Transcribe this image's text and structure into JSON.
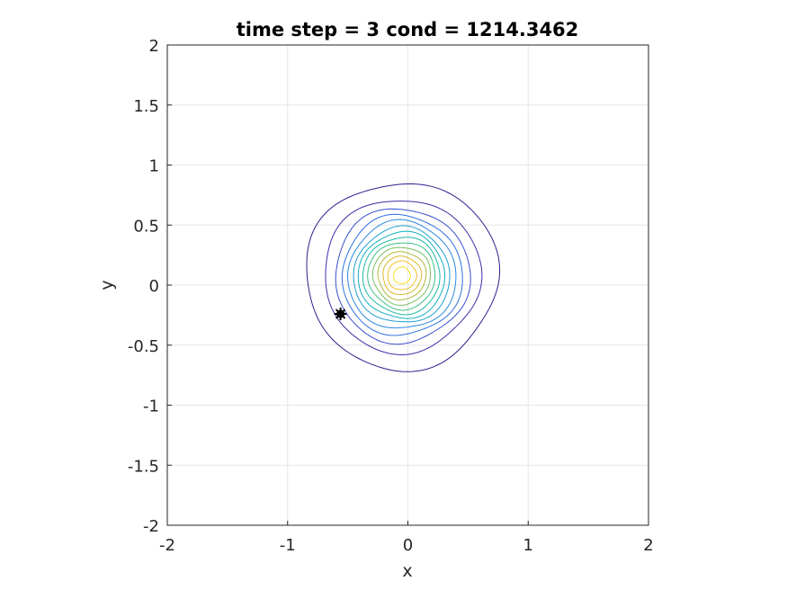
{
  "chart_data": {
    "type": "contour",
    "title": "time step = 3 cond = 1214.3462",
    "xlabel": "x",
    "ylabel": "y",
    "xlim": [
      -2,
      2
    ],
    "ylim": [
      -2,
      2
    ],
    "x_ticks": [
      "-2",
      "-1",
      "0",
      "1",
      "2"
    ],
    "y_ticks": [
      "2",
      "1.5",
      "1",
      "0.5",
      "0",
      "-0.5",
      "-1",
      "-1.5",
      "-2"
    ],
    "grid": true,
    "contour_center": [
      -0.05,
      0.08
    ],
    "contour_levels": [
      {
        "rx": 0.8,
        "ry": 0.78,
        "color": "#2f1f8f"
      },
      {
        "rx": 0.65,
        "ry": 0.64,
        "color": "#3a2fa8"
      },
      {
        "rx": 0.56,
        "ry": 0.56,
        "color": "#3a4fd0"
      },
      {
        "rx": 0.5,
        "ry": 0.5,
        "color": "#2f6fe0"
      },
      {
        "rx": 0.45,
        "ry": 0.45,
        "color": "#2a88dd"
      },
      {
        "rx": 0.4,
        "ry": 0.4,
        "color": "#1f9fd2"
      },
      {
        "rx": 0.36,
        "ry": 0.36,
        "color": "#14b0c0"
      },
      {
        "rx": 0.32,
        "ry": 0.32,
        "color": "#1ab9a5"
      },
      {
        "rx": 0.28,
        "ry": 0.28,
        "color": "#3dbf85"
      },
      {
        "rx": 0.24,
        "ry": 0.24,
        "color": "#78c060"
      },
      {
        "rx": 0.2,
        "ry": 0.2,
        "color": "#b0bc3a"
      },
      {
        "rx": 0.16,
        "ry": 0.16,
        "color": "#d9b92a"
      },
      {
        "rx": 0.12,
        "ry": 0.12,
        "color": "#f4c22a"
      },
      {
        "rx": 0.07,
        "ry": 0.07,
        "color": "#f9e01f"
      }
    ],
    "marker": {
      "x": -0.56,
      "y": -0.24,
      "color": "#000000"
    },
    "colors": {
      "grid": "#e6e6e6",
      "axis": "#262626"
    }
  }
}
